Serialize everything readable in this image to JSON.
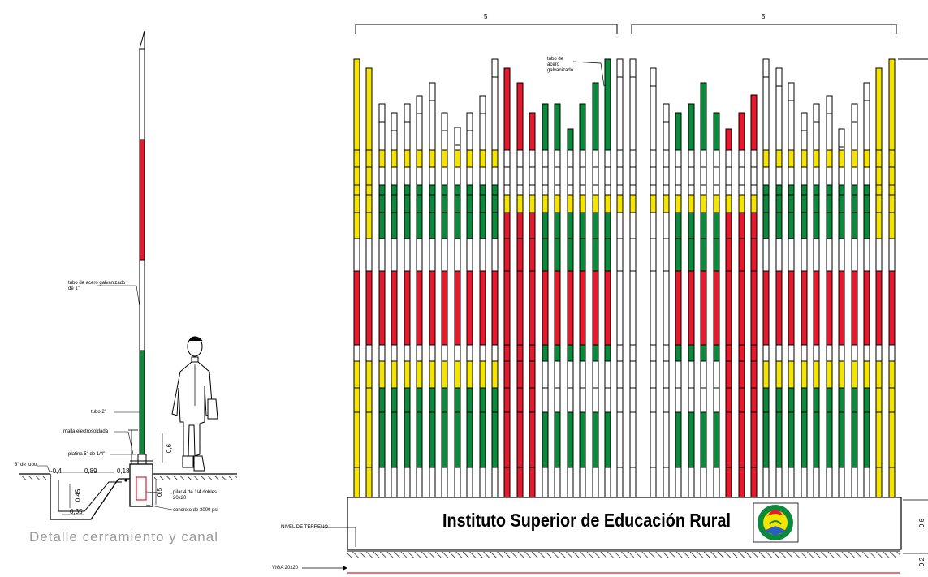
{
  "detail": {
    "caption": "Detalle cerramiento y canal",
    "dimensions": [
      "-0,4",
      "0,89",
      "0,18",
      "0,6",
      "0,45",
      "0,35",
      "0,5"
    ],
    "notes": [
      "tubo de acero galvanizado de 1\"",
      "tubo 2\"",
      "malla electrosoldada",
      "platina 5\" de 1/4\"",
      "3\" de tubo",
      "pilar 4 de 1/4 dobles 20x20",
      "concreto de 3000 psi"
    ]
  },
  "elevation": {
    "span_labels": [
      "5",
      "5"
    ],
    "notes": [
      "tubo de acero galvanizado",
      "NIVEL DE TERRENO",
      "VIGA 20x20"
    ],
    "side_dims": [
      "0,6",
      "0,2"
    ],
    "banner_title": "Instituto Superior de Educación Rural",
    "colors": {
      "yellow": "#f5e400",
      "green": "#0a8a3a",
      "red": "#e8192c",
      "white": "#ffffff",
      "line": "#000000"
    },
    "post_tops": [
      73,
      84,
      128,
      139,
      128,
      118,
      102,
      139,
      157,
      139,
      118,
      73,
      84,
      102,
      139,
      128,
      128,
      159,
      128,
      102,
      73,
      73,
      73,
      84,
      128,
      139,
      128,
      102,
      139,
      159,
      139,
      117,
      73,
      84,
      102,
      139,
      128,
      118,
      159,
      128,
      102,
      84,
      73
    ]
  }
}
